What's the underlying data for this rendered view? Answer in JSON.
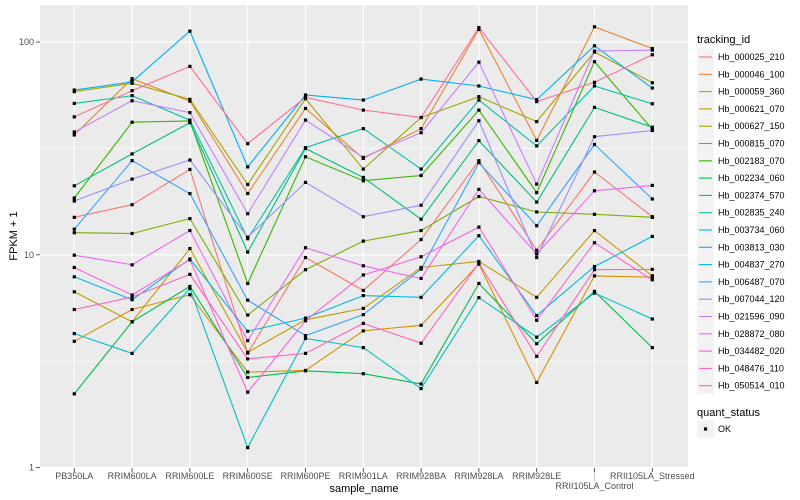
{
  "chart_data": {
    "type": "line",
    "xlabel": "sample_name",
    "ylabel": "FPKM + 1",
    "y_scale": "log10",
    "ylim": [
      1,
      140
    ],
    "y_ticks": [
      "1",
      "10",
      "100"
    ],
    "y_tick_values": [
      1,
      10,
      100
    ],
    "grid": true,
    "legend_position": "right",
    "categories": [
      "PB350LA",
      "RRIM600LA",
      "RRIM600LE",
      "RRIM600SE",
      "RRIM600PE",
      "RRIM901LA",
      "RRIM928BA",
      "RRIM928LA",
      "RRIM928LE",
      "RRII105LA_Control",
      "RRII105LA_Stressed"
    ],
    "legend_title": "tracking_id",
    "series": [
      {
        "name": "Hb_000025_210",
        "color": "#F8766D",
        "values": [
          15.0,
          17.2,
          25.2,
          3.45,
          9.71,
          6.8,
          11.8,
          27.7,
          10.5,
          24.5,
          15.1
        ]
      },
      {
        "name": "Hb_000046_100",
        "color": "#EA8331",
        "values": [
          36.6,
          67.3,
          52.8,
          19.4,
          48.8,
          28.4,
          39.2,
          114.7,
          34.5,
          118,
          93.3
        ]
      },
      {
        "name": "Hb_000059_360",
        "color": "#D89000",
        "values": [
          3.92,
          5.53,
          6.49,
          2.81,
          2.86,
          4.39,
          4.66,
          9.04,
          2.51,
          7.96,
          7.85
        ]
      },
      {
        "name": "Hb_000621_070",
        "color": "#C09B00",
        "values": [
          6.7,
          4.84,
          10.7,
          3.48,
          4.95,
          5.6,
          8.72,
          9.31,
          6.31,
          13.0,
          7.96
        ]
      },
      {
        "name": "Hb_000627_150",
        "color": "#A3A500",
        "values": [
          58.5,
          64.0,
          53.8,
          21.4,
          54.2,
          25.3,
          44.2,
          55.4,
          42.3,
          89.8,
          64.4
        ]
      },
      {
        "name": "Hb_000815_070",
        "color": "#7CAE00",
        "values": [
          12.7,
          12.6,
          14.8,
          5.21,
          8.51,
          11.6,
          13.0,
          18.8,
          15.9,
          15.5,
          15.0
        ]
      },
      {
        "name": "Hb_002183_070",
        "color": "#39B600",
        "values": [
          18.5,
          42.0,
          42.6,
          7.33,
          28.9,
          22.3,
          23.6,
          47.9,
          19.6,
          80.9,
          38.9
        ]
      },
      {
        "name": "Hb_002234_060",
        "color": "#00BB4E",
        "values": [
          2.22,
          4.84,
          7.1,
          2.65,
          2.85,
          2.76,
          2.47,
          7.33,
          3.82,
          6.73,
          3.66
        ]
      },
      {
        "name": "Hb_002374_570",
        "color": "#00BF7D",
        "values": [
          21.1,
          29.8,
          41.8,
          10.3,
          31.6,
          23.1,
          14.7,
          34.4,
          17.7,
          49.3,
          39.8
        ]
      },
      {
        "name": "Hb_002835_240",
        "color": "#00C1A3",
        "values": [
          51.5,
          56.0,
          43.0,
          11.9,
          31.9,
          39.2,
          25.3,
          53.4,
          32.5,
          62.2,
          51.3
        ]
      },
      {
        "name": "Hb_003734_060",
        "color": "#00BFC4",
        "values": [
          4.26,
          3.44,
          6.95,
          1.24,
          4.04,
          3.66,
          2.35,
          6.29,
          4.1,
          6.61,
          4.99
        ]
      },
      {
        "name": "Hb_003813_030",
        "color": "#00BAE0",
        "values": [
          7.88,
          6.15,
          9.55,
          4.37,
          5.04,
          6.43,
          6.31,
          12.3,
          5.18,
          8.81,
          12.2
        ]
      },
      {
        "name": "Hb_004837_270",
        "color": "#00B0F6",
        "values": [
          59.5,
          65.1,
          112.6,
          25.9,
          56.4,
          53.4,
          67.0,
          62.2,
          53.6,
          96.1,
          60.8
        ]
      },
      {
        "name": "Hb_006487_070",
        "color": "#35A2FF",
        "values": [
          13.2,
          27.7,
          19.4,
          6.12,
          4.17,
          5.23,
          8.57,
          27.1,
          13.7,
          33.0,
          18.3
        ]
      },
      {
        "name": "Hb_007044_120",
        "color": "#9590FF",
        "values": [
          17.9,
          22.7,
          27.9,
          12.1,
          21.9,
          15.1,
          17.1,
          42.7,
          9.71,
          35.9,
          38.4
        ]
      },
      {
        "name": "Hb_021596_090",
        "color": "#C77CFF",
        "values": [
          37.8,
          53.0,
          46.6,
          15.6,
          43.0,
          28.7,
          37.5,
          80.5,
          21.5,
          90.7,
          91.7
        ]
      },
      {
        "name": "Hb_028872_080",
        "color": "#E76BF3",
        "values": [
          9.96,
          8.97,
          13.0,
          3.95,
          10.8,
          8.88,
          7.74,
          20.3,
          10.1,
          20.0,
          21.2
        ]
      },
      {
        "name": "Hb_034482_020",
        "color": "#FA62DB",
        "values": [
          8.72,
          6.47,
          9.48,
          2.26,
          4.9,
          8.04,
          9.79,
          13.5,
          4.92,
          11.4,
          7.63
        ]
      },
      {
        "name": "Hb_048476_110",
        "color": "#FF62BC",
        "values": [
          5.53,
          6.33,
          8.09,
          3.24,
          3.44,
          4.76,
          3.84,
          9.14,
          3.33,
          8.51,
          8.54
        ]
      },
      {
        "name": "Hb_050514_010",
        "color": "#FF6C91",
        "values": [
          44.5,
          59.1,
          76.9,
          33.3,
          55.0,
          47.9,
          44.2,
          117,
          52.5,
          64.7,
          87.2
        ]
      }
    ],
    "point_legend": {
      "title": "quant_status",
      "items": [
        "OK"
      ]
    },
    "colors": {
      "panel": "#EBEBEB",
      "grid": "#FFFFFF",
      "point": "#000000"
    }
  }
}
